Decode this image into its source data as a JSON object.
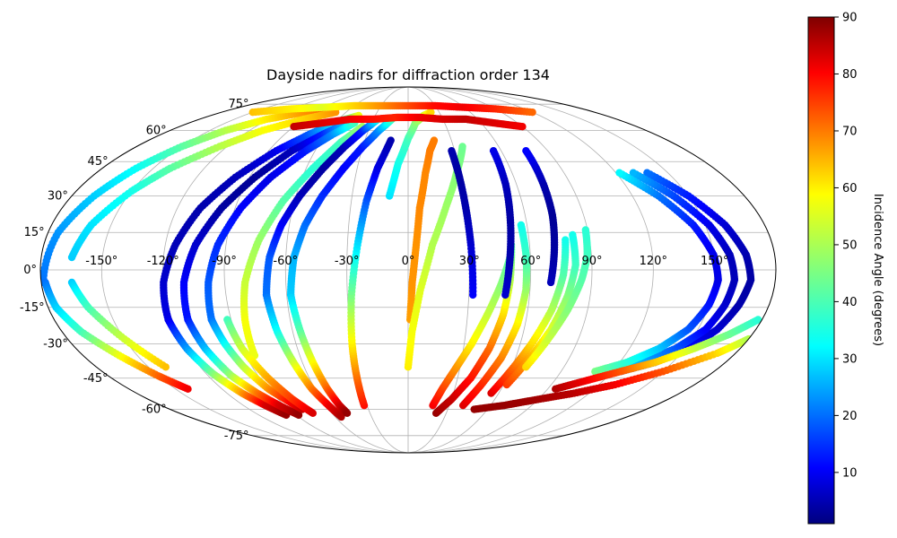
{
  "chart_data": {
    "type": "scatter",
    "projection": "mollweide",
    "title": "Dayside nadirs for diffraction order 134",
    "xlabel": "",
    "ylabel": "",
    "grid": true,
    "lon_ticks": [
      -150,
      -120,
      -90,
      -60,
      -30,
      0,
      30,
      60,
      90,
      120,
      150
    ],
    "lon_tick_labels": [
      "-150°",
      "-120°",
      "-90°",
      "-60°",
      "-30°",
      "0°",
      "30°",
      "60°",
      "90°",
      "120°",
      "150°"
    ],
    "lat_ticks": [
      75,
      60,
      45,
      30,
      15,
      0,
      -15,
      -30,
      -45,
      -60,
      -75
    ],
    "lat_tick_labels": [
      "75°",
      "60°",
      "45°",
      "30°",
      "15°",
      "0°",
      "-15°",
      "-30°",
      "-45°",
      "-60°",
      "-75°"
    ],
    "colormap": "jet",
    "colorbar": {
      "label": "Incidence Angle (degrees)",
      "range": [
        1,
        90
      ],
      "ticks": [
        10,
        20,
        30,
        40,
        50,
        60,
        70,
        80,
        90
      ],
      "tick_labels": [
        "10",
        "20",
        "30",
        "40",
        "50",
        "60",
        "70",
        "80",
        "90"
      ]
    },
    "x_unit": "longitude (degrees)",
    "y_unit": "latitude (degrees)",
    "c_unit": "incidence angle (degrees)",
    "tracks": [
      {
        "lon": [
          -179,
          -175,
          -168,
          -160,
          -150,
          -138,
          -122,
          -100,
          -75
        ],
        "lat": [
          -5,
          15,
          30,
          42,
          52,
          60,
          66,
          70,
          72
        ],
        "inc": [
          22,
          25,
          30,
          35,
          42,
          50,
          58,
          66,
          72
        ]
      },
      {
        "lon": [
          -178,
          -176,
          -170,
          -160,
          -150,
          -142
        ],
        "lat": [
          -5,
          -15,
          -25,
          -35,
          -44,
          -50
        ],
        "inc": [
          22,
          30,
          40,
          55,
          70,
          80
        ]
      },
      {
        "lon": [
          -165,
          -160,
          -150,
          -140,
          -125,
          -110,
          -90,
          -70
        ],
        "lat": [
          5,
          18,
          32,
          42,
          52,
          60,
          66,
          70
        ],
        "inc": [
          30,
          32,
          36,
          42,
          50,
          56,
          60,
          66
        ]
      },
      {
        "lon": [
          -165,
          -160,
          -150,
          -140
        ],
        "lat": [
          -5,
          -15,
          -28,
          -40
        ],
        "inc": [
          30,
          40,
          52,
          62
        ]
      },
      {
        "lon": [
          -122,
          -120,
          -115,
          -108,
          -98,
          -85,
          -72,
          -58,
          -45
        ],
        "lat": [
          -20,
          -5,
          10,
          25,
          38,
          50,
          58,
          65,
          68
        ],
        "inc": [
          10,
          8,
          6,
          5,
          6,
          10,
          20,
          35,
          55
        ]
      },
      {
        "lon": [
          -122,
          -120,
          -116,
          -110,
          -104,
          -98
        ],
        "lat": [
          -20,
          -32,
          -43,
          -52,
          -58,
          -63
        ],
        "inc": [
          10,
          25,
          45,
          65,
          82,
          88
        ]
      },
      {
        "lon": [
          -112,
          -110,
          -105,
          -97,
          -87,
          -75,
          -62,
          -50
        ],
        "lat": [
          -20,
          -5,
          10,
          25,
          38,
          50,
          58,
          64
        ],
        "inc": [
          14,
          12,
          8,
          4,
          3,
          6,
          15,
          30
        ]
      },
      {
        "lon": [
          -112,
          -110,
          -106,
          -100,
          -94,
          -88
        ],
        "lat": [
          -20,
          -32,
          -44,
          -52,
          -58,
          -63
        ],
        "inc": [
          14,
          28,
          48,
          68,
          82,
          88
        ]
      },
      {
        "lon": [
          -100,
          -98,
          -94,
          -87,
          -78,
          -66,
          -55,
          -44
        ],
        "lat": [
          -20,
          -5,
          10,
          25,
          38,
          50,
          58,
          64
        ],
        "inc": [
          22,
          20,
          16,
          12,
          10,
          14,
          24,
          40
        ]
      },
      {
        "lon": [
          -100,
          -98,
          -95,
          -90,
          -84,
          -80
        ],
        "lat": [
          -20,
          -30,
          -40,
          -50,
          -56,
          -60
        ],
        "inc": [
          22,
          34,
          50,
          66,
          78,
          84
        ]
      },
      {
        "lon": [
          -85,
          -83,
          -80,
          -74,
          -66,
          -56,
          -46,
          -36
        ],
        "lat": [
          -35,
          -20,
          -5,
          12,
          28,
          42,
          54,
          62
        ],
        "inc": [
          55,
          56,
          52,
          48,
          42,
          38,
          40,
          48
        ]
      },
      {
        "lon": [
          -92,
          -90,
          -85,
          -80,
          -75
        ],
        "lat": [
          -20,
          -32,
          -45,
          -55,
          -62
        ],
        "inc": [
          40,
          52,
          64,
          74,
          82
        ]
      },
      {
        "lon": [
          -70,
          -68,
          -64,
          -58,
          -50,
          -42,
          -34,
          -26
        ],
        "lat": [
          -10,
          5,
          18,
          30,
          42,
          52,
          60,
          66
        ],
        "inc": [
          22,
          20,
          12,
          6,
          4,
          6,
          15,
          35
        ]
      },
      {
        "lon": [
          -70,
          -68,
          -65,
          -62,
          -58,
          -55
        ],
        "lat": [
          -10,
          -25,
          -38,
          -50,
          -58,
          -64
        ],
        "inc": [
          22,
          35,
          52,
          68,
          80,
          86
        ]
      },
      {
        "lon": [
          -58,
          -56,
          -52,
          -46,
          -38,
          -30,
          -22,
          -14
        ],
        "lat": [
          -10,
          5,
          18,
          30,
          42,
          52,
          60,
          66
        ],
        "inc": [
          30,
          28,
          22,
          16,
          12,
          14,
          24,
          40
        ]
      },
      {
        "lon": [
          -58,
          -56,
          -54,
          -52,
          -50,
          -48
        ],
        "lat": [
          -10,
          -25,
          -38,
          -50,
          -58,
          -62
        ],
        "inc": [
          30,
          42,
          56,
          70,
          82,
          88
        ]
      },
      {
        "lon": [
          -32,
          -31,
          -30,
          -28,
          -25,
          -22,
          -18,
          -12
        ],
        "lat": [
          -58,
          -45,
          -30,
          -10,
          10,
          28,
          42,
          55
        ],
        "inc": [
          78,
          70,
          58,
          45,
          32,
          20,
          10,
          5
        ]
      },
      {
        "lon": [
          -10,
          -6,
          0,
          6,
          14,
          22
        ],
        "lat": [
          30,
          44,
          56,
          64,
          68,
          70
        ],
        "inc": [
          32,
          36,
          40,
          46,
          52,
          60
        ]
      },
      {
        "lon": [
          1,
          2,
          4,
          6,
          10,
          14,
          18
        ],
        "lat": [
          -20,
          -5,
          10,
          25,
          40,
          50,
          55
        ],
        "inc": [
          65,
          66,
          66,
          67,
          67,
          68,
          68
        ]
      },
      {
        "lon": [
          0,
          2,
          6,
          12,
          20,
          28,
          36
        ],
        "lat": [
          -40,
          -25,
          -8,
          10,
          26,
          40,
          52
        ],
        "inc": [
          58,
          56,
          54,
          50,
          48,
          46,
          44
        ]
      },
      {
        "lon": [
          32,
          31,
          30,
          29,
          28
        ],
        "lat": [
          -10,
          10,
          25,
          40,
          50
        ],
        "inc": [
          12,
          8,
          5,
          4,
          5
        ]
      },
      {
        "lon": [
          18,
          22,
          28,
          34,
          40,
          46,
          50
        ],
        "lat": [
          -58,
          -50,
          -40,
          -30,
          -18,
          -5,
          5
        ],
        "inc": [
          80,
          74,
          66,
          58,
          52,
          46,
          42
        ]
      },
      {
        "lon": [
          22,
          30,
          38,
          44,
          48,
          50,
          51
        ],
        "lat": [
          -62,
          -55,
          -45,
          -32,
          -18,
          -4,
          10
        ],
        "inc": [
          88,
          84,
          78,
          70,
          60,
          50,
          42
        ]
      },
      {
        "lon": [
          40,
          46,
          52,
          56,
          58,
          58,
          57
        ],
        "lat": [
          -58,
          -48,
          -36,
          -22,
          -8,
          5,
          18
        ],
        "inc": [
          82,
          76,
          68,
          58,
          48,
          40,
          36
        ]
      },
      {
        "lon": [
          48,
          50,
          52,
          54,
          55
        ],
        "lat": [
          -10,
          5,
          20,
          35,
          50
        ],
        "inc": [
          8,
          5,
          4,
          6,
          10
        ]
      },
      {
        "lon": [
          55,
          60,
          66,
          72,
          76,
          78
        ],
        "lat": [
          -52,
          -42,
          -30,
          -16,
          -2,
          12
        ],
        "inc": [
          82,
          72,
          60,
          50,
          42,
          36
        ]
      },
      {
        "lon": [
          62,
          68,
          74,
          79,
          82,
          82
        ],
        "lat": [
          -48,
          -36,
          -24,
          -10,
          2,
          14
        ],
        "inc": [
          74,
          64,
          54,
          46,
          40,
          36
        ]
      },
      {
        "lon": [
          68,
          74,
          80,
          85,
          88,
          89
        ],
        "lat": [
          -40,
          -28,
          -16,
          -4,
          6,
          16
        ],
        "inc": [
          60,
          52,
          46,
          42,
          40,
          38
        ]
      },
      {
        "lon": [
          70,
          72,
          74,
          75,
          76
        ],
        "lat": [
          -5,
          8,
          22,
          36,
          50
        ],
        "inc": [
          6,
          4,
          3,
          5,
          12
        ]
      },
      {
        "lon": [
          125,
          140,
          152,
          160,
          165,
          168,
          166,
          160,
          150,
          138
        ],
        "lat": [
          -42,
          -38,
          -32,
          -24,
          -14,
          -4,
          6,
          18,
          30,
          40
        ],
        "inc": [
          22,
          18,
          12,
          8,
          5,
          4,
          5,
          8,
          14,
          22
        ]
      },
      {
        "lon": [
          118,
          132,
          145,
          154,
          158,
          160,
          158,
          152,
          142,
          130
        ],
        "lat": [
          -42,
          -38,
          -32,
          -24,
          -14,
          -4,
          6,
          18,
          30,
          40
        ],
        "inc": [
          35,
          28,
          20,
          12,
          8,
          6,
          6,
          10,
          18,
          28
        ]
      },
      {
        "lon": [
          110,
          124,
          136,
          145,
          150,
          152,
          150,
          144,
          134,
          122
        ],
        "lat": [
          -42,
          -38,
          -32,
          -24,
          -14,
          -4,
          6,
          18,
          30,
          40
        ],
        "inc": [
          45,
          38,
          30,
          20,
          14,
          10,
          10,
          14,
          22,
          34
        ]
      },
      {
        "lon": [
          50,
          70,
          90,
          110,
          130,
          150,
          170,
          180
        ],
        "lat": [
          -60,
          -58,
          -55,
          -52,
          -48,
          -42,
          -34,
          -28
        ],
        "inc": [
          88,
          88,
          87,
          85,
          80,
          72,
          60,
          50
        ]
      },
      {
        "lon": [
          95,
          110,
          125,
          140,
          155,
          168,
          178
        ],
        "lat": [
          -50,
          -46,
          -42,
          -38,
          -32,
          -26,
          -20
        ],
        "inc": [
          86,
          80,
          72,
          62,
          52,
          44,
          38
        ]
      },
      {
        "lon": [
          -150,
          -120,
          -90,
          -60,
          -30,
          0,
          30,
          60,
          90,
          120
        ],
        "lat": [
          70,
          72,
          73,
          74,
          74,
          74,
          74,
          73,
          72,
          70
        ],
        "inc": [
          62,
          58,
          54,
          60,
          66,
          72,
          78,
          80,
          76,
          70
        ]
      },
      {
        "lon": [
          -90,
          -70,
          -50,
          -30,
          -10,
          10,
          30,
          50,
          70,
          90
        ],
        "lat": [
          62,
          64,
          66,
          66,
          67,
          67,
          66,
          66,
          64,
          62
        ],
        "inc": [
          84,
          82,
          80,
          78,
          76,
          80,
          82,
          84,
          82,
          80
        ]
      }
    ]
  }
}
